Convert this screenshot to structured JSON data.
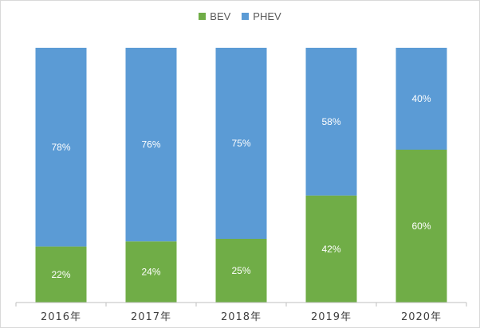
{
  "chart_data": {
    "type": "bar",
    "stacked": true,
    "percent_stacked": true,
    "categories": [
      "2016年",
      "2017年",
      "2018年",
      "2019年",
      "2020年"
    ],
    "series": [
      {
        "name": "BEV",
        "color": "#70ad47",
        "values": [
          22,
          24,
          25,
          42,
          60
        ],
        "labels": [
          "22%",
          "24%",
          "25%",
          "42%",
          "60%"
        ]
      },
      {
        "name": "PHEV",
        "color": "#5b9bd5",
        "values": [
          78,
          76,
          75,
          58,
          40
        ],
        "labels": [
          "78%",
          "76%",
          "75%",
          "58%",
          "40%"
        ]
      }
    ],
    "ylim": [
      0,
      100
    ],
    "legend_position": "top-center",
    "grid": false
  }
}
